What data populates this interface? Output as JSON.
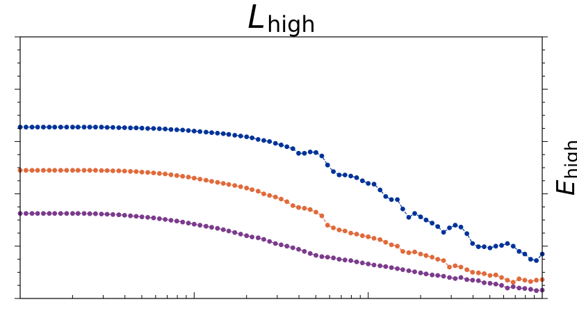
{
  "chart_data": {
    "type": "line",
    "title": {
      "main": "L",
      "sub": "high"
    },
    "ylabel": {
      "main": "E",
      "sub": "high"
    },
    "xscale": "log",
    "xlim": [
      0.01,
      10
    ],
    "ylim": [
      0,
      1
    ],
    "grid": false,
    "legend": "none",
    "x_tick_labels": [],
    "y_tick_labels": [],
    "colors": [
      "#003399",
      "#e06a3b",
      "#7b3b8c"
    ],
    "series": [
      {
        "color": "#003399",
        "x": [
          0.01,
          0.0108,
          0.0117,
          0.0126,
          0.0136,
          0.0147,
          0.0158,
          0.0171,
          0.0185,
          0.02,
          0.0215,
          0.0233,
          0.0251,
          0.0271,
          0.0293,
          0.0316,
          0.0341,
          0.0369,
          0.0398,
          0.043,
          0.0464,
          0.0501,
          0.0541,
          0.0584,
          0.0631,
          0.0681,
          0.0736,
          0.0794,
          0.0858,
          0.0926,
          0.1,
          0.108,
          0.117,
          0.126,
          0.136,
          0.147,
          0.158,
          0.171,
          0.185,
          0.2,
          0.215,
          0.233,
          0.251,
          0.271,
          0.293,
          0.316,
          0.341,
          0.369,
          0.398,
          0.43,
          0.464,
          0.501,
          0.541,
          0.584,
          0.631,
          0.681,
          0.736,
          0.794,
          0.858,
          0.926,
          1.0,
          1.08,
          1.17,
          1.26,
          1.36,
          1.47,
          1.58,
          1.71,
          1.85,
          2.0,
          2.15,
          2.33,
          2.51,
          2.71,
          2.93,
          3.16,
          3.41,
          3.69,
          3.98,
          4.3,
          4.64,
          5.01,
          5.41,
          5.84,
          6.31,
          6.81,
          7.36,
          7.94,
          8.58,
          9.26,
          10.0
        ],
        "y": [
          0.655,
          0.655,
          0.655,
          0.655,
          0.655,
          0.655,
          0.655,
          0.655,
          0.655,
          0.655,
          0.655,
          0.655,
          0.655,
          0.655,
          0.655,
          0.654,
          0.654,
          0.653,
          0.653,
          0.652,
          0.652,
          0.651,
          0.65,
          0.65,
          0.649,
          0.648,
          0.646,
          0.645,
          0.644,
          0.642,
          0.64,
          0.638,
          0.636,
          0.634,
          0.632,
          0.63,
          0.627,
          0.624,
          0.621,
          0.618,
          0.614,
          0.608,
          0.604,
          0.6,
          0.593,
          0.587,
          0.58,
          0.573,
          0.555,
          0.555,
          0.56,
          0.558,
          0.545,
          0.51,
          0.485,
          0.472,
          0.472,
          0.468,
          0.462,
          0.45,
          0.44,
          0.437,
          0.415,
          0.39,
          0.378,
          0.378,
          0.342,
          0.31,
          0.325,
          0.312,
          0.3,
          0.288,
          0.275,
          0.253,
          0.27,
          0.28,
          0.273,
          0.248,
          0.21,
          0.198,
          0.198,
          0.193,
          0.2,
          0.203,
          0.21,
          0.2,
          0.18,
          0.17,
          0.15,
          0.145,
          0.17
        ]
      },
      {
        "color": "#e06a3b",
        "x": [
          0.01,
          0.0108,
          0.0117,
          0.0126,
          0.0136,
          0.0147,
          0.0158,
          0.0171,
          0.0185,
          0.02,
          0.0215,
          0.0233,
          0.0251,
          0.0271,
          0.0293,
          0.0316,
          0.0341,
          0.0369,
          0.0398,
          0.043,
          0.0464,
          0.0501,
          0.0541,
          0.0584,
          0.0631,
          0.0681,
          0.0736,
          0.0794,
          0.0858,
          0.0926,
          0.1,
          0.108,
          0.117,
          0.126,
          0.136,
          0.147,
          0.158,
          0.171,
          0.185,
          0.2,
          0.215,
          0.233,
          0.251,
          0.271,
          0.293,
          0.316,
          0.341,
          0.369,
          0.398,
          0.43,
          0.464,
          0.501,
          0.541,
          0.584,
          0.631,
          0.681,
          0.736,
          0.794,
          0.858,
          0.926,
          1.0,
          1.08,
          1.17,
          1.26,
          1.36,
          1.47,
          1.58,
          1.71,
          1.85,
          2.0,
          2.15,
          2.33,
          2.51,
          2.71,
          2.93,
          3.16,
          3.41,
          3.69,
          3.98,
          4.3,
          4.64,
          5.01,
          5.41,
          5.84,
          6.31,
          6.81,
          7.36,
          7.94,
          8.58,
          9.26,
          10.0
        ],
        "y": [
          0.49,
          0.49,
          0.49,
          0.49,
          0.49,
          0.49,
          0.49,
          0.49,
          0.49,
          0.49,
          0.49,
          0.49,
          0.49,
          0.49,
          0.489,
          0.489,
          0.488,
          0.488,
          0.487,
          0.486,
          0.485,
          0.483,
          0.482,
          0.48,
          0.478,
          0.476,
          0.473,
          0.47,
          0.467,
          0.464,
          0.46,
          0.456,
          0.452,
          0.448,
          0.444,
          0.44,
          0.436,
          0.432,
          0.427,
          0.422,
          0.416,
          0.41,
          0.4,
          0.394,
          0.388,
          0.38,
          0.37,
          0.355,
          0.348,
          0.345,
          0.34,
          0.33,
          0.316,
          0.28,
          0.27,
          0.262,
          0.258,
          0.25,
          0.246,
          0.24,
          0.236,
          0.23,
          0.225,
          0.215,
          0.205,
          0.2,
          0.18,
          0.175,
          0.178,
          0.17,
          0.164,
          0.158,
          0.15,
          0.145,
          0.12,
          0.125,
          0.12,
          0.11,
          0.1,
          0.098,
          0.095,
          0.088,
          0.09,
          0.08,
          0.07,
          0.062,
          0.075,
          0.07,
          0.065,
          0.07,
          0.072
        ]
      },
      {
        "color": "#7b3b8c",
        "x": [
          0.01,
          0.0108,
          0.0117,
          0.0126,
          0.0136,
          0.0147,
          0.0158,
          0.0171,
          0.0185,
          0.02,
          0.0215,
          0.0233,
          0.0251,
          0.0271,
          0.0293,
          0.0316,
          0.0341,
          0.0369,
          0.0398,
          0.043,
          0.0464,
          0.0501,
          0.0541,
          0.0584,
          0.0631,
          0.0681,
          0.0736,
          0.0794,
          0.0858,
          0.0926,
          0.1,
          0.108,
          0.117,
          0.126,
          0.136,
          0.147,
          0.158,
          0.171,
          0.185,
          0.2,
          0.215,
          0.233,
          0.251,
          0.271,
          0.293,
          0.316,
          0.341,
          0.369,
          0.398,
          0.43,
          0.464,
          0.501,
          0.541,
          0.584,
          0.631,
          0.681,
          0.736,
          0.794,
          0.858,
          0.926,
          1.0,
          1.08,
          1.17,
          1.26,
          1.36,
          1.47,
          1.58,
          1.71,
          1.85,
          2.0,
          2.15,
          2.33,
          2.51,
          2.71,
          2.93,
          3.16,
          3.41,
          3.69,
          3.98,
          4.3,
          4.64,
          5.01,
          5.41,
          5.84,
          6.31,
          6.81,
          7.36,
          7.94,
          8.58,
          9.26,
          10.0
        ],
        "y": [
          0.325,
          0.325,
          0.325,
          0.325,
          0.325,
          0.325,
          0.325,
          0.325,
          0.325,
          0.325,
          0.325,
          0.325,
          0.324,
          0.324,
          0.323,
          0.322,
          0.321,
          0.32,
          0.318,
          0.316,
          0.314,
          0.312,
          0.31,
          0.308,
          0.305,
          0.302,
          0.299,
          0.296,
          0.292,
          0.288,
          0.284,
          0.28,
          0.276,
          0.272,
          0.268,
          0.263,
          0.258,
          0.252,
          0.246,
          0.24,
          0.235,
          0.232,
          0.226,
          0.218,
          0.21,
          0.205,
          0.2,
          0.194,
          0.188,
          0.18,
          0.172,
          0.165,
          0.16,
          0.158,
          0.155,
          0.15,
          0.147,
          0.145,
          0.14,
          0.136,
          0.132,
          0.128,
          0.125,
          0.122,
          0.118,
          0.114,
          0.11,
          0.106,
          0.102,
          0.098,
          0.094,
          0.09,
          0.088,
          0.085,
          0.08,
          0.076,
          0.08,
          0.072,
          0.07,
          0.068,
          0.06,
          0.058,
          0.055,
          0.05,
          0.04,
          0.045,
          0.04,
          0.038,
          0.035,
          0.03,
          0.032
        ]
      }
    ]
  }
}
